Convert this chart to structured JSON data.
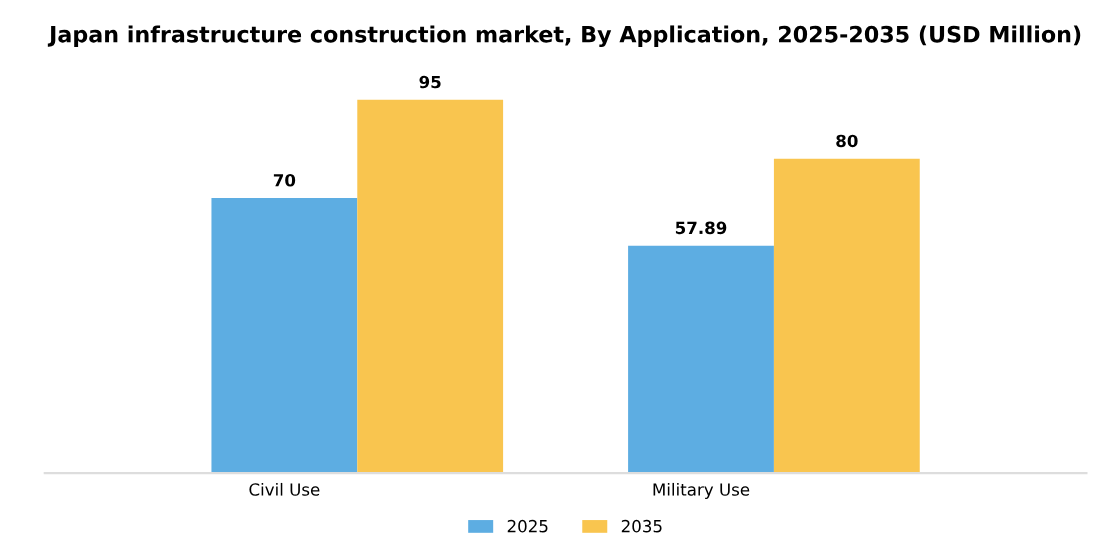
{
  "chart_data": {
    "type": "bar",
    "title": "Japan infrastructure construction market, By Application, 2025-2035 (USD Million)",
    "categories": [
      "Civil Use",
      "Military Use"
    ],
    "series": [
      {
        "name": "2025",
        "color": "#5dade2",
        "values": [
          70,
          57.89
        ]
      },
      {
        "name": "2035",
        "color": "#f9c54f",
        "values": [
          95,
          80
        ]
      }
    ],
    "data_labels": true,
    "legend": "bottom",
    "grid": false,
    "tick_labels": "x"
  }
}
